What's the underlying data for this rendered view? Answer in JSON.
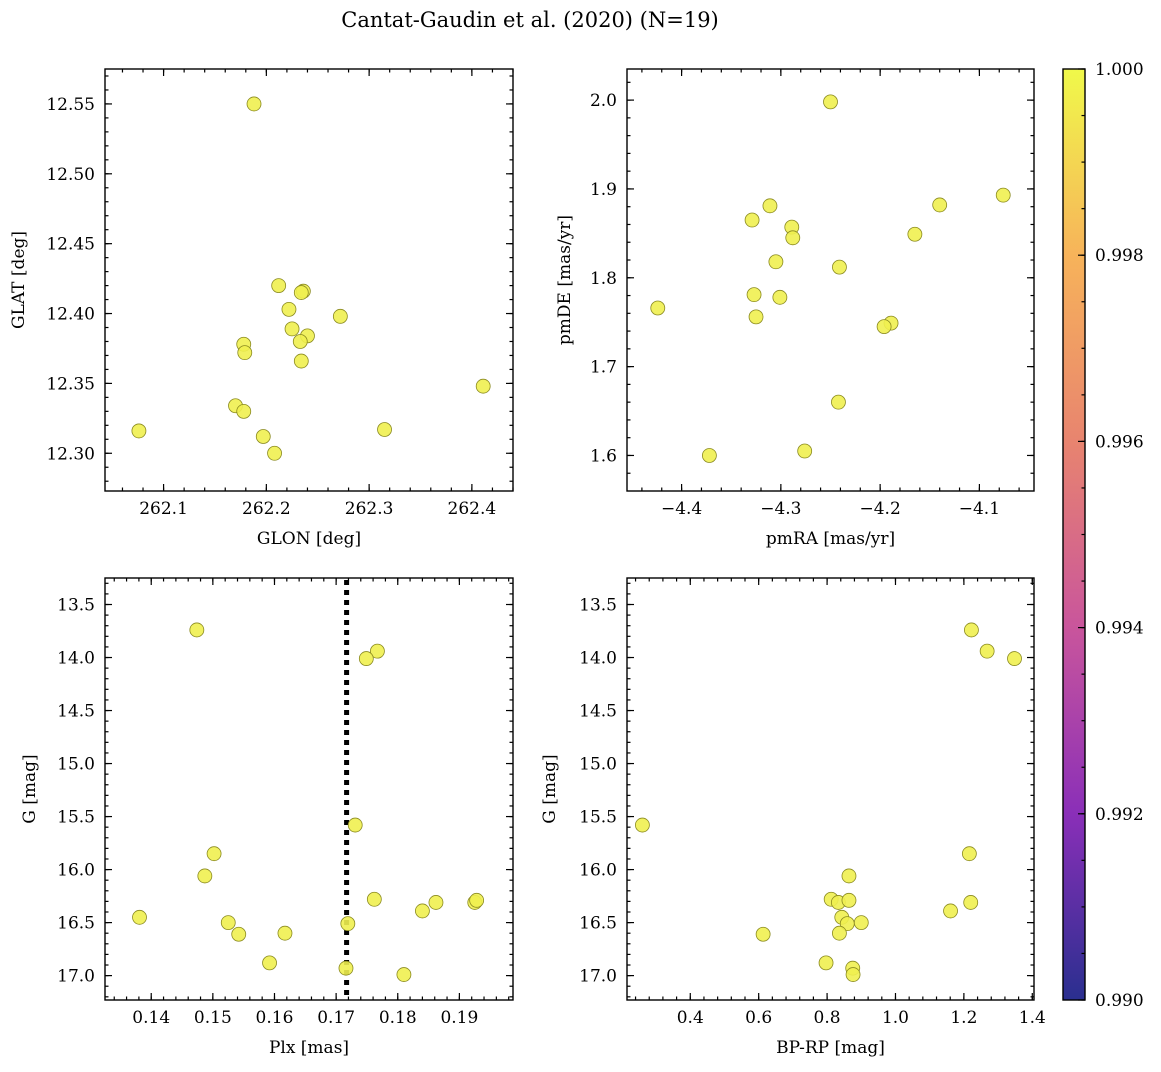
{
  "figure": {
    "title": "Cantat-Gaudin et al. (2020) (N=19)",
    "point_color": "#f0f050",
    "colorbar": {
      "min": 0.99,
      "max": 1.0,
      "ticks": [
        0.99,
        0.992,
        0.994,
        0.996,
        0.998,
        1.0
      ],
      "tick_labels": [
        "0.990",
        "0.992",
        "0.994",
        "0.996",
        "0.998",
        "1.000"
      ],
      "colors": [
        "#2a2f8f",
        "#8a2fb8",
        "#c9559c",
        "#e8846f",
        "#f7b35a",
        "#f0f94a"
      ]
    }
  },
  "chart_data": [
    {
      "type": "scatter",
      "xlabel": "GLON [deg]",
      "ylabel": "GLAT [deg]",
      "xlim": [
        262.043,
        262.44
      ],
      "ylim": [
        12.273,
        12.575
      ],
      "xticks": [
        262.1,
        262.2,
        262.3,
        262.4
      ],
      "xtick_labels": [
        "262.1",
        "262.2",
        "262.3",
        "262.4"
      ],
      "yticks": [
        12.3,
        12.35,
        12.4,
        12.45,
        12.5,
        12.55
      ],
      "ytick_labels": [
        "12.30",
        "12.35",
        "12.40",
        "12.45",
        "12.50",
        "12.55"
      ],
      "x": [
        262.188,
        262.212,
        262.236,
        262.234,
        262.222,
        262.272,
        262.225,
        262.24,
        262.233,
        262.178,
        262.179,
        262.234,
        262.17,
        262.178,
        262.197,
        262.208,
        262.076,
        262.315,
        262.411
      ],
      "y": [
        12.55,
        12.42,
        12.416,
        12.415,
        12.403,
        12.398,
        12.389,
        12.384,
        12.38,
        12.378,
        12.372,
        12.366,
        12.334,
        12.33,
        12.312,
        12.3,
        12.316,
        12.317,
        12.348
      ]
    },
    {
      "type": "scatter",
      "xlabel": "pmRA [mas/yr]",
      "ylabel": "pmDE [mas/yr]",
      "xlim": [
        -4.455,
        -4.045
      ],
      "ylim": [
        1.56,
        2.035
      ],
      "xticks": [
        -4.4,
        -4.3,
        -4.2,
        -4.1
      ],
      "xtick_labels": [
        "−4.4",
        "−4.3",
        "−4.2",
        "−4.1"
      ],
      "yticks": [
        1.6,
        1.7,
        1.8,
        1.9,
        2.0
      ],
      "ytick_labels": [
        "1.6",
        "1.7",
        "1.8",
        "1.9",
        "2.0"
      ],
      "x": [
        -4.25,
        -4.076,
        -4.311,
        -4.14,
        -4.329,
        -4.289,
        -4.165,
        -4.288,
        -4.305,
        -4.241,
        -4.424,
        -4.327,
        -4.301,
        -4.325,
        -4.189,
        -4.196,
        -4.242,
        -4.372,
        -4.276
      ],
      "y": [
        1.998,
        1.893,
        1.881,
        1.882,
        1.865,
        1.857,
        1.849,
        1.845,
        1.818,
        1.812,
        1.766,
        1.781,
        1.778,
        1.756,
        1.749,
        1.745,
        1.66,
        1.6,
        1.605
      ]
    },
    {
      "type": "scatter",
      "xlabel": "Plx [mas]",
      "ylabel": "G [mag]",
      "xlim": [
        0.1325,
        0.1987
      ],
      "ylim": [
        17.23,
        13.25
      ],
      "y_inverted": true,
      "xticks": [
        0.14,
        0.15,
        0.16,
        0.17,
        0.18,
        0.19
      ],
      "xtick_labels": [
        "0.14",
        "0.15",
        "0.16",
        "0.17",
        "0.18",
        "0.19"
      ],
      "yticks": [
        13.5,
        14.0,
        14.5,
        15.0,
        15.5,
        16.0,
        16.5,
        17.0
      ],
      "ytick_labels": [
        "13.5",
        "14.0",
        "14.5",
        "15.0",
        "15.5",
        "16.0",
        "16.5",
        "17.0"
      ],
      "reference_line_x": 0.1717,
      "x": [
        0.1474,
        0.1767,
        0.1749,
        0.1731,
        0.1502,
        0.1487,
        0.1762,
        0.1862,
        0.184,
        0.1925,
        0.1928,
        0.1381,
        0.1525,
        0.1542,
        0.1617,
        0.1719,
        0.1592,
        0.1716,
        0.181
      ],
      "y": [
        13.74,
        13.94,
        14.01,
        15.58,
        15.85,
        16.06,
        16.28,
        16.31,
        16.39,
        16.31,
        16.29,
        16.45,
        16.5,
        16.61,
        16.6,
        16.51,
        16.88,
        16.93,
        16.99
      ]
    },
    {
      "type": "scatter",
      "xlabel": "BP-RP [mag]",
      "ylabel": "G [mag]",
      "xlim": [
        0.215,
        1.405
      ],
      "ylim": [
        17.23,
        13.25
      ],
      "y_inverted": true,
      "xticks": [
        0.4,
        0.6,
        0.8,
        1.0,
        1.2,
        1.4
      ],
      "xtick_labels": [
        "0.4",
        "0.6",
        "0.8",
        "1.0",
        "1.2",
        "1.4"
      ],
      "yticks": [
        13.5,
        14.0,
        14.5,
        15.0,
        15.5,
        16.0,
        16.5,
        17.0
      ],
      "ytick_labels": [
        "13.5",
        "14.0",
        "14.5",
        "15.0",
        "15.5",
        "16.0",
        "16.5",
        "17.0"
      ],
      "x": [
        1.222,
        1.268,
        1.348,
        0.26,
        1.216,
        0.864,
        0.812,
        0.833,
        0.864,
        0.843,
        0.859,
        0.9,
        0.836,
        0.613,
        1.161,
        1.22,
        0.797,
        0.875,
        0.876
      ],
      "y": [
        13.74,
        13.94,
        14.01,
        15.58,
        15.85,
        16.06,
        16.28,
        16.31,
        16.29,
        16.45,
        16.51,
        16.5,
        16.6,
        16.61,
        16.39,
        16.31,
        16.88,
        16.93,
        16.99
      ]
    }
  ]
}
